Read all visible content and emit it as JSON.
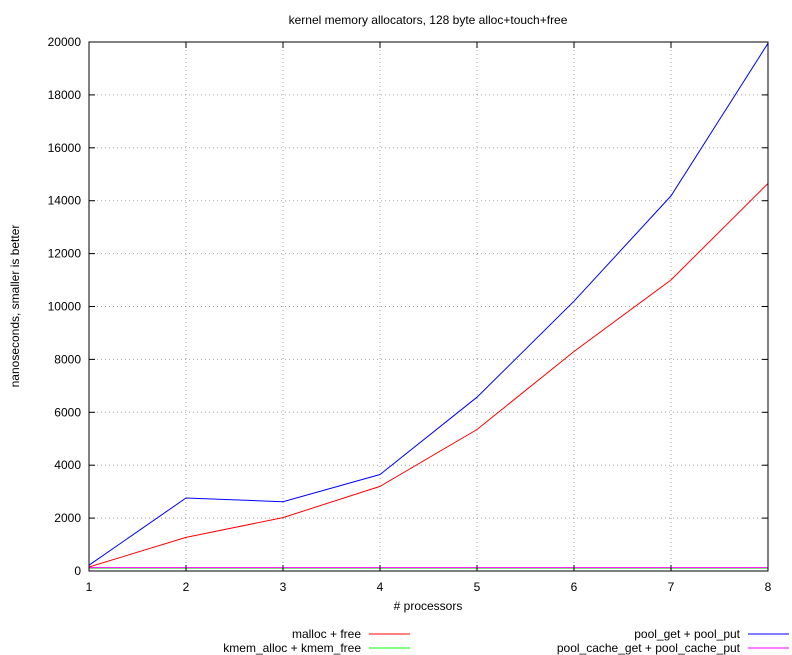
{
  "chart_data": {
    "type": "line",
    "title": "kernel memory allocators, 128 byte alloc+touch+free",
    "xlabel": "# processors",
    "ylabel": "nanoseconds, smaller is better",
    "xlim": [
      1,
      8
    ],
    "ylim": [
      0,
      20000
    ],
    "x_ticks": [
      1,
      2,
      3,
      4,
      5,
      6,
      7,
      8
    ],
    "y_ticks": [
      0,
      2000,
      4000,
      6000,
      8000,
      10000,
      12000,
      14000,
      16000,
      18000,
      20000
    ],
    "grid": true,
    "legend_placement": "bottom",
    "x": [
      1,
      2,
      3,
      4,
      5,
      6,
      7,
      8
    ],
    "series": [
      {
        "name": "malloc + free",
        "color": "#ff0000",
        "values": [
          150,
          1270,
          2020,
          3200,
          5350,
          8300,
          11000,
          14650
        ]
      },
      {
        "name": "kmem_alloc + kmem_free",
        "color": "#00ff00",
        "values": [
          110,
          110,
          110,
          110,
          110,
          110,
          110,
          110
        ]
      },
      {
        "name": "pool_get + pool_put",
        "color": "#0000ff",
        "values": [
          220,
          2760,
          2620,
          3650,
          6570,
          10200,
          14180,
          19950
        ]
      },
      {
        "name": "pool_cache_get + pool_cache_put",
        "color": "#ff00ff",
        "values": [
          130,
          130,
          130,
          130,
          130,
          130,
          130,
          130
        ]
      }
    ]
  }
}
